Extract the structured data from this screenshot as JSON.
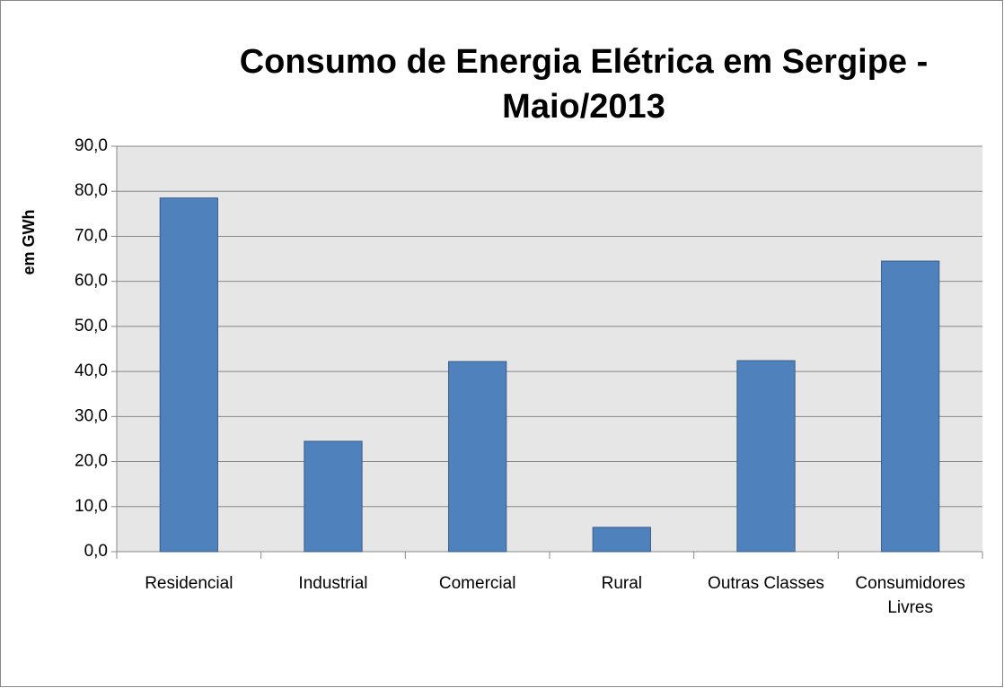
{
  "chart_data": {
    "type": "bar",
    "title": "Consumo de Energia Elétrica em Sergipe - Maio/2013",
    "y_label": "em GWh",
    "categories": [
      "Residencial",
      "Industrial",
      "Comercial",
      "Rural",
      "Outras Classes",
      "Consumidores Livres"
    ],
    "values": [
      78.5,
      24.5,
      42.2,
      5.4,
      42.4,
      64.5
    ],
    "color": "#4f81bd",
    "ylim": [
      0,
      90
    ],
    "yticks": [
      {
        "value": 0,
        "label": "0,0"
      },
      {
        "value": 10,
        "label": "10,0"
      },
      {
        "value": 20,
        "label": "20,0"
      },
      {
        "value": 30,
        "label": "30,0"
      },
      {
        "value": 40,
        "label": "40,0"
      },
      {
        "value": 50,
        "label": "50,0"
      },
      {
        "value": 60,
        "label": "60,0"
      },
      {
        "value": 70,
        "label": "70,0"
      },
      {
        "value": 80,
        "label": "80,0"
      },
      {
        "value": 90,
        "label": "90,0"
      }
    ],
    "grid": true
  }
}
